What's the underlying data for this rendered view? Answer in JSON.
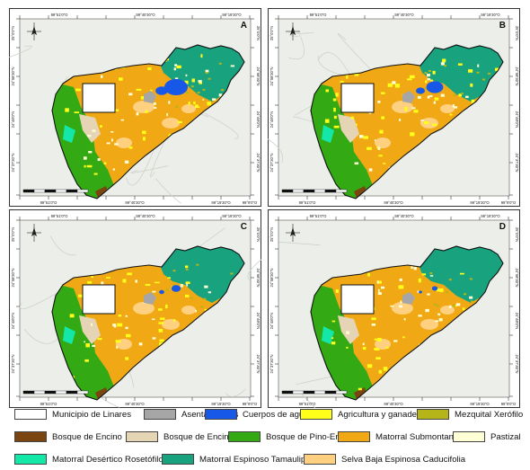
{
  "map": {
    "top_labels": [
      "99°51'0\"O",
      "99°40'30\"O",
      "99°19'30\"O"
    ],
    "bottom_labels": [
      "99°51'0\"O",
      "99°40'30\"O",
      "99°19'30\"O",
      "99°9'0\"O"
    ],
    "left_labels": [
      "25°0'0\"N",
      "24°58'30\"N",
      "24°48'0\"N",
      "24°37'30\"N"
    ],
    "right_labels": [
      "25°0'0\"N",
      "24°58'30\"N",
      "24°48'0\"N",
      "24°37'30\"N"
    ],
    "panels": [
      {
        "letter": "A",
        "variant": "water-large"
      },
      {
        "letter": "B",
        "variant": "water-medium"
      },
      {
        "letter": "C",
        "variant": "water-small"
      },
      {
        "letter": "D",
        "variant": "water-minimal"
      }
    ]
  },
  "legend": {
    "items": [
      {
        "label": "Municipio de Linares",
        "color": "#ffffff"
      },
      {
        "label": "Asentamientos",
        "color": "#a6a6a6"
      },
      {
        "label": "Cuerpos de agua",
        "color": "#1858e8"
      },
      {
        "label": "Agricultura y ganadería",
        "color": "#ffff1a"
      },
      {
        "label": "Mezquital Xerófilo",
        "color": "#b5b51a"
      },
      {
        "label": "Bosque de Encino",
        "color": "#7a4510"
      },
      {
        "label": "Bosque de Encino-Pino",
        "color": "#e5d5b4"
      },
      {
        "label": "Bosque de Pino-Encino",
        "color": "#33aa14"
      },
      {
        "label": "Matorral Submontano",
        "color": "#f0a814"
      },
      {
        "label": "Pastizal",
        "color": "#ffffd6"
      },
      {
        "label": "Matorral Desértico Rosetófilo",
        "color": "#14e8a8"
      },
      {
        "label": "Matorral Espinoso Tamaulipeco",
        "color": "#18a27e"
      },
      {
        "label": "Selva Baja Espinosa Caducifolia",
        "color": "#ffd080"
      }
    ]
  }
}
